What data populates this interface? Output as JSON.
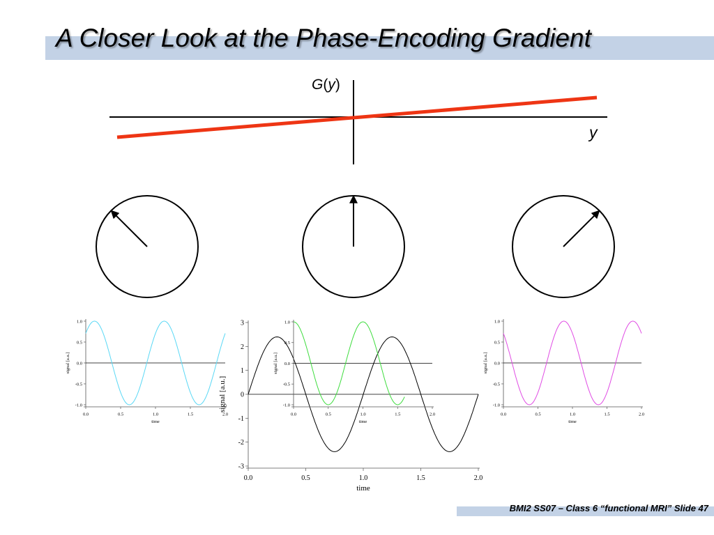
{
  "slide": {
    "title": "A Closer Look at the Phase-Encoding Gradient",
    "footer": "BMI2 SS07 – Class 6 “functional MRI” Slide 47"
  },
  "gradient": {
    "y_label_g": "G",
    "y_label_open": "(",
    "y_label_var": "y",
    "y_label_close": ")",
    "x_label": "y",
    "line_color": "#ee3514"
  },
  "phasors": [
    {
      "angle_deg": 135
    },
    {
      "angle_deg": 90
    },
    {
      "angle_deg": 45
    }
  ],
  "chart_data": [
    {
      "type": "line",
      "xlabel": "time",
      "ylabel": "signal [a.u.]",
      "xlim": [
        0,
        2
      ],
      "ylim": [
        -1,
        1
      ],
      "xticks": [
        "0.0",
        "0.5",
        "1.0",
        "1.5",
        "2.0"
      ],
      "yticks": [
        "-1.0",
        "-0.5",
        "0.0",
        "0.5",
        "1.0"
      ],
      "series": [
        {
          "color": "#5ad8f5",
          "function": "sin(2*pi*t)",
          "phase_deg": 45,
          "x_range": [
            0,
            2
          ],
          "amplitude": 1
        }
      ]
    },
    {
      "type": "line",
      "xlabel": "time",
      "ylabel": "signal [a.u.]",
      "xlim": [
        0,
        2
      ],
      "ylim": [
        -3,
        3
      ],
      "xticks": [
        "0.0",
        "0.5",
        "1.0",
        "1.5",
        "2.0"
      ],
      "yticks": [
        "-3",
        "-2",
        "-1",
        "0",
        "1",
        "2",
        "3"
      ],
      "series": [
        {
          "color": "#000000",
          "function": "sin(2*pi*t)",
          "phase_deg": 0,
          "x_range": [
            0,
            2
          ],
          "amplitude": 2.4
        }
      ]
    },
    {
      "type": "line",
      "xlabel": "time",
      "ylabel": "signal [a.u.]",
      "xlim": [
        0,
        2
      ],
      "ylim": [
        -1,
        1
      ],
      "xticks": [
        "0.0",
        "0.5",
        "1.0",
        "1.5",
        "2.0"
      ],
      "yticks": [
        "-1.0",
        "-0.5",
        "0.0",
        "0.5",
        "1.0"
      ],
      "series": [
        {
          "color": "#3ddc3d",
          "function": "sin(2*pi*t)",
          "phase_deg": 90,
          "x_range": [
            0,
            1.6
          ],
          "amplitude": 1
        }
      ]
    },
    {
      "type": "line",
      "xlabel": "time",
      "ylabel": "signal [a.u.]",
      "xlim": [
        0,
        2
      ],
      "ylim": [
        -1,
        1
      ],
      "xticks": [
        "0.0",
        "0.5",
        "1.0",
        "1.5",
        "2.0"
      ],
      "yticks": [
        "-1.0",
        "-0.5",
        "0.0",
        "0.5",
        "1.0"
      ],
      "series": [
        {
          "color": "#e04ce4",
          "function": "sin(2*pi*t)",
          "phase_deg": 135,
          "x_range": [
            0,
            2
          ],
          "amplitude": 1
        }
      ]
    }
  ]
}
